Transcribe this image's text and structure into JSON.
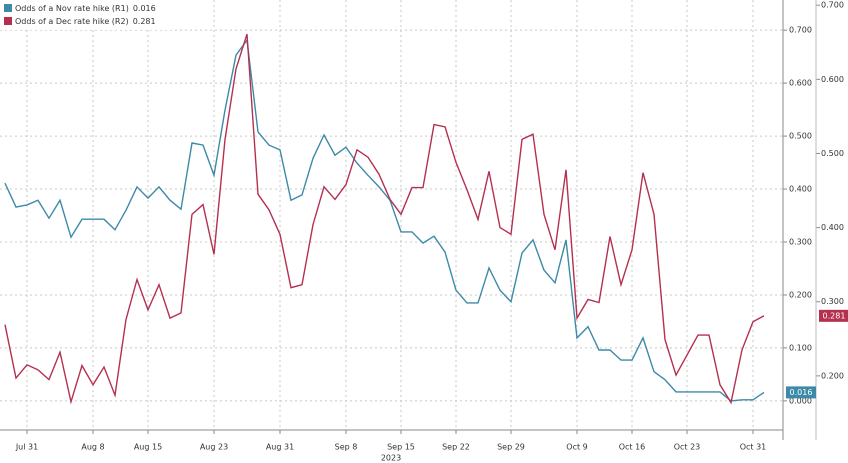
{
  "chart_data": {
    "type": "line",
    "x_sublabel": "2023",
    "x": [
      "2023-07-27",
      "2023-07-28",
      "2023-07-31",
      "2023-08-01",
      "2023-08-02",
      "2023-08-03",
      "2023-08-04",
      "2023-08-07",
      "2023-08-08",
      "2023-08-09",
      "2023-08-10",
      "2023-08-11",
      "2023-08-14",
      "2023-08-15",
      "2023-08-16",
      "2023-08-17",
      "2023-08-18",
      "2023-08-21",
      "2023-08-22",
      "2023-08-23",
      "2023-08-24",
      "2023-08-25",
      "2023-08-28",
      "2023-08-29",
      "2023-08-30",
      "2023-08-31",
      "2023-09-01",
      "2023-09-04",
      "2023-09-05",
      "2023-09-06",
      "2023-09-07",
      "2023-09-08",
      "2023-09-11",
      "2023-09-12",
      "2023-09-13",
      "2023-09-14",
      "2023-09-15",
      "2023-09-18",
      "2023-09-19",
      "2023-09-20",
      "2023-09-21",
      "2023-09-22",
      "2023-09-25",
      "2023-09-26",
      "2023-09-27",
      "2023-09-28",
      "2023-09-29",
      "2023-10-02",
      "2023-10-03",
      "2023-10-04",
      "2023-10-05",
      "2023-10-06",
      "2023-10-09",
      "2023-10-10",
      "2023-10-11",
      "2023-10-12",
      "2023-10-13",
      "2023-10-16",
      "2023-10-17",
      "2023-10-18",
      "2023-10-19",
      "2023-10-20",
      "2023-10-23",
      "2023-10-24",
      "2023-10-25",
      "2023-10-26",
      "2023-10-27",
      "2023-10-30",
      "2023-10-31",
      "2023-11-01"
    ],
    "xlim": [
      "2023-07-27",
      "2023-11-01"
    ],
    "xticks": [
      {
        "value": "2023-07-31",
        "label": "Jul 31"
      },
      {
        "value": "2023-08-08",
        "label": "Aug 8"
      },
      {
        "value": "2023-08-15",
        "label": "Aug 15"
      },
      {
        "value": "2023-08-23",
        "label": "Aug 23"
      },
      {
        "value": "2023-08-31",
        "label": "Aug 31"
      },
      {
        "value": "2023-09-08",
        "label": "Sep 8"
      },
      {
        "value": "2023-09-15",
        "label": "Sep 15"
      },
      {
        "value": "2023-09-22",
        "label": "Sep 22"
      },
      {
        "value": "2023-09-29",
        "label": "Sep 29"
      },
      {
        "value": "2023-10-09",
        "label": "Oct 9"
      },
      {
        "value": "2023-10-16",
        "label": "Oct 16"
      },
      {
        "value": "2023-10-23",
        "label": "Oct 23"
      },
      {
        "value": "2023-10-31",
        "label": "Oct 31"
      }
    ],
    "ylim": [
      -0.055,
      0.757
    ],
    "yticks": [
      {
        "value": 0,
        "label": "0.000"
      },
      {
        "value": 0.1,
        "label": "0.100"
      },
      {
        "value": 0.2,
        "label": "0.200"
      },
      {
        "value": 0.3,
        "label": "0.300"
      },
      {
        "value": 0.4,
        "label": "0.400"
      },
      {
        "value": 0.5,
        "label": "0.500"
      },
      {
        "value": 0.6,
        "label": "0.600"
      },
      {
        "value": 0.7,
        "label": "0.700"
      }
    ],
    "y2lim": [
      0.127,
      0.707
    ],
    "y2ticks": [
      {
        "value": 0.2,
        "label": "0.200"
      },
      {
        "value": 0.3,
        "label": "0.300"
      },
      {
        "value": 0.4,
        "label": "0.400"
      },
      {
        "value": 0.5,
        "label": "0.500"
      },
      {
        "value": 0.6,
        "label": "0.600"
      },
      {
        "value": 0.7,
        "label": "0.700"
      }
    ],
    "grid": true,
    "legend": "top-left",
    "series": [
      {
        "name": "Odds of a Nov rate hike (R1)",
        "color": "#3d8aa8",
        "values": [
          0.411,
          0.366,
          0.37,
          0.379,
          0.345,
          0.379,
          0.309,
          0.343,
          0.343,
          0.343,
          0.323,
          0.36,
          0.404,
          0.383,
          0.404,
          0.379,
          0.362,
          0.487,
          0.483,
          0.426,
          0.549,
          0.653,
          0.681,
          0.508,
          0.483,
          0.474,
          0.379,
          0.389,
          0.458,
          0.502,
          0.464,
          0.479,
          0.449,
          0.426,
          0.404,
          0.379,
          0.319,
          0.319,
          0.298,
          0.311,
          0.281,
          0.209,
          0.185,
          0.185,
          0.251,
          0.209,
          0.187,
          0.279,
          0.304,
          0.247,
          0.223,
          0.304,
          0.119,
          0.14,
          0.096,
          0.096,
          0.077,
          0.077,
          0.119,
          0.055,
          0.04,
          0.017,
          0.017,
          0.017,
          0.017,
          0.017,
          0.0,
          0.002,
          0.002,
          0.016
        ]
      },
      {
        "name": "Odds of a Dec rate hike (R2)",
        "color": "#b5304f",
        "axis": "y2",
        "values": [
          0.269,
          0.197,
          0.215,
          0.208,
          0.195,
          0.232,
          0.165,
          0.214,
          0.188,
          0.212,
          0.174,
          0.276,
          0.33,
          0.289,
          0.323,
          0.278,
          0.285,
          0.418,
          0.431,
          0.364,
          0.519,
          0.614,
          0.661,
          0.445,
          0.424,
          0.391,
          0.319,
          0.323,
          0.404,
          0.455,
          0.438,
          0.458,
          0.505,
          0.495,
          0.472,
          0.438,
          0.418,
          0.454,
          0.454,
          0.539,
          0.536,
          0.488,
          0.451,
          0.411,
          0.476,
          0.4,
          0.391,
          0.519,
          0.526,
          0.418,
          0.37,
          0.478,
          0.278,
          0.303,
          0.299,
          0.388,
          0.323,
          0.37,
          0.474,
          0.418,
          0.249,
          0.201,
          0.228,
          0.255,
          0.255,
          0.188,
          0.164,
          0.235,
          0.273,
          0.281
        ]
      }
    ]
  }
}
